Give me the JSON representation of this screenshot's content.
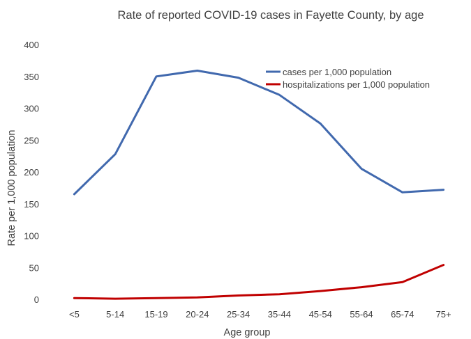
{
  "chart_data": {
    "type": "line",
    "title": "Rate of reported COVID-19 cases in Fayette County, by age",
    "xlabel": "Age group",
    "ylabel": "Rate per 1,000 population",
    "categories": [
      "<5",
      "5-14",
      "15-19",
      "20-24",
      "25-34",
      "35-44",
      "45-54",
      "55-64",
      "65-74",
      "75+"
    ],
    "ylim": [
      0,
      400
    ],
    "yticks": [
      0,
      50,
      100,
      150,
      200,
      250,
      300,
      350,
      400
    ],
    "grid": false,
    "legend_position": "top-right",
    "series": [
      {
        "name": "cases per 1,000 population",
        "color": "#4169AE",
        "values": [
          165,
          228,
          350,
          359,
          348,
          321,
          276,
          205,
          168,
          172
        ]
      },
      {
        "name": "hospitalizations per 1,000 population",
        "color": "#C00000",
        "values": [
          2,
          1,
          2,
          3,
          6,
          8,
          13,
          19,
          27,
          54
        ]
      }
    ]
  }
}
